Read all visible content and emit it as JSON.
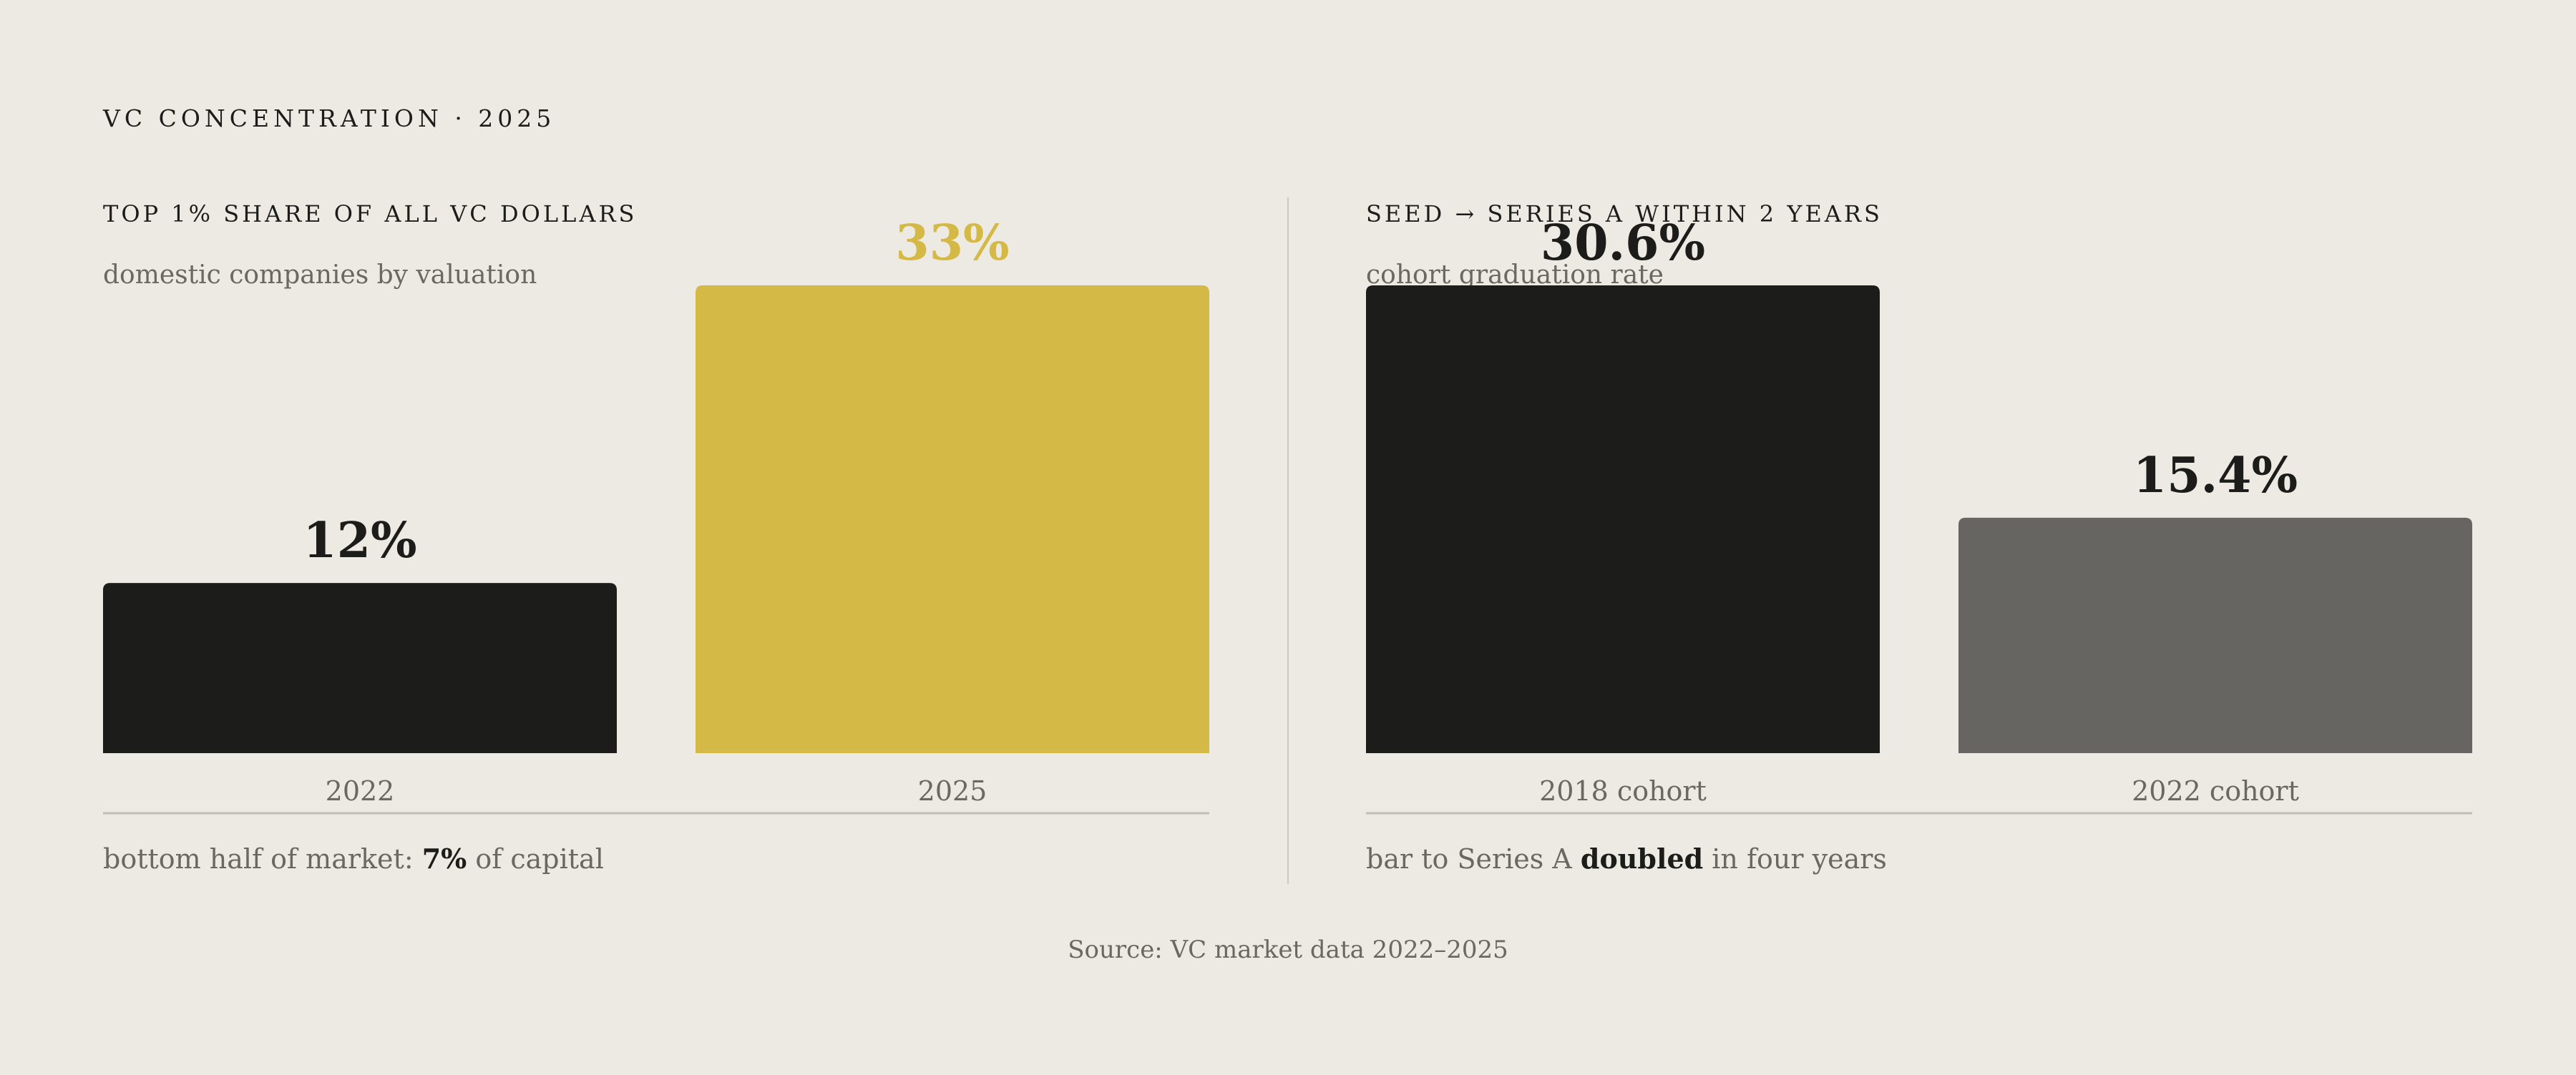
{
  "kicker": "VC CONCENTRATION · 2025",
  "source": "Source: VC market data 2022–2025",
  "colors": {
    "background": "#edeae3",
    "dark": "#1c1c1a",
    "gold": "#d5b947",
    "gray": "#666561",
    "muted_text": "#6a6863"
  },
  "chart_data": [
    {
      "type": "bar",
      "title": "TOP 1% SHARE OF ALL VC DOLLARS",
      "subtitle": "domestic companies by valuation",
      "categories": [
        "2022",
        "2025"
      ],
      "values": [
        12,
        33
      ],
      "value_labels": [
        "12%",
        "33%"
      ],
      "bar_colors": [
        "#1c1c1a",
        "#d5b947"
      ],
      "label_colors": [
        "#1c1c1a",
        "#d5b947"
      ],
      "ylim": [
        0,
        33
      ],
      "note": {
        "pre": "bottom half of market: ",
        "bold": "7%",
        "post": " of capital"
      }
    },
    {
      "type": "bar",
      "title": "SEED → SERIES A WITHIN 2 YEARS",
      "subtitle": "cohort graduation rate",
      "categories": [
        "2018 cohort",
        "2022 cohort"
      ],
      "values": [
        30.6,
        15.4
      ],
      "value_labels": [
        "30.6%",
        "15.4%"
      ],
      "bar_colors": [
        "#1c1c1a",
        "#666561"
      ],
      "label_colors": [
        "#1c1c1a",
        "#1c1c1a"
      ],
      "ylim": [
        0,
        30.6
      ],
      "note": {
        "pre": "bar to Series A ",
        "bold": "doubled",
        "post": " in four years"
      }
    }
  ]
}
